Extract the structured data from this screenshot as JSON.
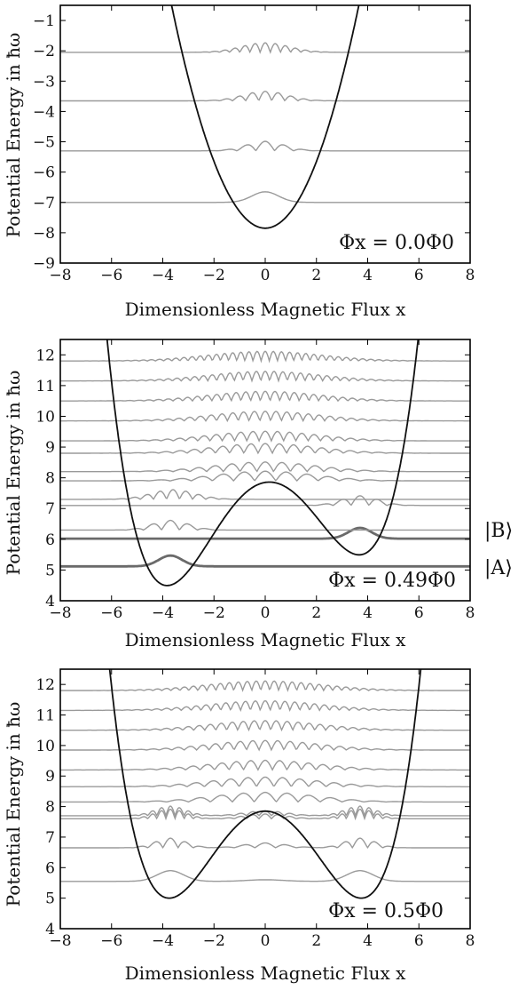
{
  "chart_data": [
    {
      "type": "line",
      "annotation": "Φx = 0.0Φ0",
      "xlabel": "Dimensionless Magnetic Flux x",
      "ylabel": "Potential Energy in ħω",
      "xlim": [
        -8,
        8
      ],
      "ylim": [
        -9,
        -0.5
      ],
      "xticks": [
        "−8",
        "−6",
        "−4",
        "−2",
        "0",
        "2",
        "4",
        "6",
        "8"
      ],
      "yticks": [
        "−9",
        "−8",
        "−7",
        "−6",
        "−5",
        "−4",
        "−3",
        "−2",
        "−1"
      ],
      "potential": {
        "kind": "parabola",
        "x0": 0,
        "min": -7.85
      },
      "levels": [
        {
          "energy": -7.0,
          "n": 0,
          "halfwidth": 1.6
        },
        {
          "energy": -5.3,
          "n": 1,
          "halfwidth": 2.0
        },
        {
          "energy": -3.65,
          "n": 2,
          "halfwidth": 2.3
        },
        {
          "energy": -2.05,
          "n": 3,
          "halfwidth": 2.5
        }
      ]
    },
    {
      "type": "line",
      "annotation": "Φx = 0.49Φ0",
      "xlabel": "Dimensionless Magnetic Flux x",
      "ylabel": "Potential Energy in ħω",
      "xlim": [
        -8,
        8
      ],
      "ylim": [
        4,
        12.5
      ],
      "xticks": [
        "−8",
        "−6",
        "−4",
        "−2",
        "0",
        "2",
        "4",
        "6",
        "8"
      ],
      "yticks": [
        "4",
        "5",
        "6",
        "7",
        "8",
        "9",
        "10",
        "11",
        "12"
      ],
      "potential": {
        "kind": "double-well",
        "wells": [
          -3.75,
          3.75
        ],
        "barrier": 7.85,
        "left_min": 4.5,
        "right_min": 5.5
      },
      "levels": [
        {
          "energy": 5.12,
          "n": 0,
          "center": -3.7,
          "halfwidth": 1.4,
          "bold": true
        },
        {
          "energy": 6.02,
          "n": 0,
          "center": 3.7,
          "halfwidth": 1.4,
          "bold": true
        },
        {
          "energy": 6.3,
          "n": 1,
          "center": -3.7,
          "halfwidth": 1.9
        },
        {
          "energy": 7.1,
          "n": 1,
          "center": 3.7,
          "halfwidth": 1.9
        },
        {
          "energy": 7.3,
          "n": 2,
          "center": -3.6,
          "halfwidth": 2.3
        },
        {
          "energy": 7.9,
          "n": 3,
          "center": 0,
          "halfwidth": 5.2
        },
        {
          "energy": 8.2,
          "n": 4,
          "center": 0,
          "halfwidth": 5.3
        },
        {
          "energy": 8.8,
          "n": 5,
          "center": 0,
          "halfwidth": 5.5
        },
        {
          "energy": 9.2,
          "n": 6,
          "center": 0,
          "halfwidth": 5.6
        },
        {
          "energy": 9.85,
          "n": 7,
          "center": 0,
          "halfwidth": 5.7
        },
        {
          "energy": 10.5,
          "n": 8,
          "center": 0,
          "halfwidth": 5.8
        },
        {
          "energy": 11.15,
          "n": 9,
          "center": 0,
          "halfwidth": 5.9
        },
        {
          "energy": 11.8,
          "n": 10,
          "center": 0,
          "halfwidth": 6.0
        }
      ],
      "state_labels": [
        {
          "text": "|B⟩",
          "energy": 6.1
        },
        {
          "text": "|A⟩",
          "energy": 5.15
        }
      ]
    },
    {
      "type": "line",
      "annotation": "Φx = 0.5Φ0",
      "xlabel": "Dimensionless Magnetic Flux x",
      "ylabel": "Potential Energy in ħω",
      "xlim": [
        -8,
        8
      ],
      "ylim": [
        4,
        12.5
      ],
      "xticks": [
        "−8",
        "−6",
        "−4",
        "−2",
        "0",
        "2",
        "4",
        "6",
        "8"
      ],
      "yticks": [
        "4",
        "5",
        "6",
        "7",
        "8",
        "9",
        "10",
        "11",
        "12"
      ],
      "potential": {
        "kind": "double-well",
        "wells": [
          -3.75,
          3.75
        ],
        "barrier": 7.85,
        "left_min": 5.0,
        "right_min": 5.0
      },
      "levels": [
        {
          "energy": 5.55,
          "n": 0,
          "center": 0,
          "halfwidth": 5.0,
          "double": true
        },
        {
          "energy": 6.65,
          "n": 1,
          "center": 0,
          "halfwidth": 5.3,
          "double": true
        },
        {
          "energy": 7.6,
          "n": 2,
          "center": 0,
          "halfwidth": 5.3,
          "double": true
        },
        {
          "energy": 7.7,
          "n": 2,
          "center": 0,
          "halfwidth": 5.3,
          "double": true
        },
        {
          "energy": 8.15,
          "n": 3,
          "center": 0,
          "halfwidth": 5.4
        },
        {
          "energy": 8.65,
          "n": 4,
          "center": 0,
          "halfwidth": 5.5
        },
        {
          "energy": 9.2,
          "n": 5,
          "center": 0,
          "halfwidth": 5.6
        },
        {
          "energy": 9.85,
          "n": 6,
          "center": 0,
          "halfwidth": 5.7
        },
        {
          "energy": 10.5,
          "n": 7,
          "center": 0,
          "halfwidth": 5.8
        },
        {
          "energy": 11.15,
          "n": 8,
          "center": 0,
          "halfwidth": 5.9
        },
        {
          "energy": 11.8,
          "n": 9,
          "center": 0,
          "halfwidth": 6.0
        }
      ]
    }
  ]
}
